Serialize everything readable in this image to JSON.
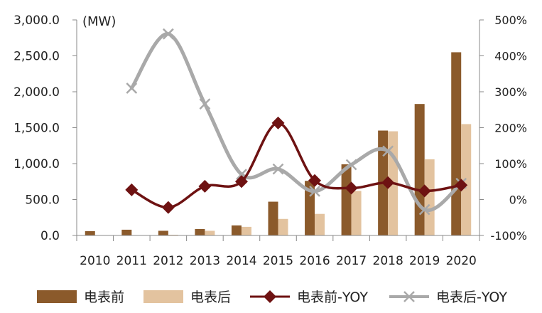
{
  "chart_data": {
    "type": "bar",
    "unit_label": "(MW)",
    "categories": [
      "2010",
      "2011",
      "2012",
      "2013",
      "2014",
      "2015",
      "2016",
      "2017",
      "2018",
      "2019",
      "2020"
    ],
    "left_axis": {
      "ylim": [
        0,
        3000
      ],
      "ticks": [
        0,
        500,
        1000,
        1500,
        2000,
        2500,
        3000
      ],
      "tick_labels": [
        "0.0",
        "500.0",
        "1,000.0",
        "1,500.0",
        "2,000.0",
        "2,500.0",
        "3,000.0"
      ]
    },
    "right_axis": {
      "ylim": [
        -100,
        500
      ],
      "ticks": [
        -100,
        0,
        100,
        200,
        300,
        400,
        500
      ],
      "tick_labels": [
        "-100%",
        "0%",
        "100%",
        "200%",
        "300%",
        "400%",
        "500%"
      ]
    },
    "series": [
      {
        "name": "电表前",
        "kind": "bar",
        "axis": "left",
        "color": "#8B5A2B",
        "values": [
          60,
          80,
          65,
          90,
          140,
          470,
          760,
          990,
          1460,
          1830,
          2550
        ]
      },
      {
        "name": "电表后",
        "kind": "bar",
        "axis": "left",
        "color": "#E3C39F",
        "values": [
          0,
          0,
          10,
          65,
          120,
          230,
          300,
          620,
          1450,
          1060,
          1550
        ]
      },
      {
        "name": "电表前-YOY",
        "kind": "line",
        "axis": "right",
        "color": "#6E1212",
        "marker": "diamond",
        "values": [
          null,
          27,
          -22,
          37,
          50,
          213,
          53,
          32,
          47,
          24,
          40
        ]
      },
      {
        "name": "电表后-YOY",
        "kind": "line",
        "axis": "right",
        "color": "#A9A9A9",
        "marker": "x",
        "values": [
          null,
          310,
          461,
          266,
          70,
          85,
          23,
          97,
          135,
          -28,
          45
        ]
      }
    ],
    "legend_position": "bottom",
    "grid": false
  }
}
